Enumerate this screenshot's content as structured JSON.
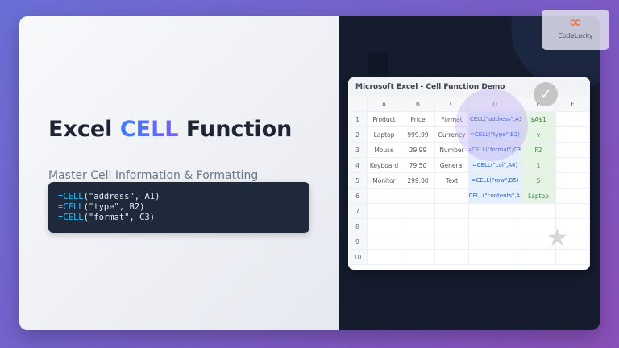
{
  "hero": {
    "title_pre": "Excel ",
    "title_hl": "CELL",
    "title_post": " Function",
    "subtitle": "Master Cell Information & Formatting"
  },
  "code": [
    {
      "fn": "=CELL",
      "args": "(\"address\", A1)"
    },
    {
      "fn": "=CELL",
      "args": "(\"type\", B2)"
    },
    {
      "fn": "=CELL",
      "args": "(\"format\", C3)"
    }
  ],
  "sheet": {
    "title": "Microsoft Excel - Cell Function Demo",
    "columns": [
      "",
      "A",
      "B",
      "C",
      "D",
      "E",
      "F"
    ],
    "rows": [
      [
        "1",
        "Product",
        "Price",
        "Format",
        "=CELL(\"address\",A1)",
        "$A$1",
        ""
      ],
      [
        "2",
        "Laptop",
        "999.99",
        "Currency",
        "=CELL(\"type\",B2)",
        "v",
        ""
      ],
      [
        "3",
        "Mouse",
        "29.99",
        "Number",
        "=CELL(\"format\",C3)",
        "F2",
        ""
      ],
      [
        "4",
        "Keyboard",
        "79.50",
        "General",
        "=CELL(\"col\",A4)",
        "1",
        ""
      ],
      [
        "5",
        "Monitor",
        "299.00",
        "Text",
        "=CELL(\"row\",B5)",
        "5",
        ""
      ],
      [
        "6",
        "",
        "",
        "",
        "=CELL(\"contents\",A2)",
        "Laptop",
        ""
      ],
      [
        "7",
        "",
        "",
        "",
        "",
        "",
        ""
      ],
      [
        "8",
        "",
        "",
        "",
        "",
        "",
        ""
      ],
      [
        "9",
        "",
        "",
        "",
        "",
        "",
        ""
      ],
      [
        "10",
        "",
        "",
        "",
        "",
        "",
        ""
      ]
    ]
  },
  "logo": {
    "text": "CodeLucky"
  },
  "colors": {
    "accent": "#5b6cf5",
    "code_bg": "#1e293b",
    "formula": "#2f5fd0",
    "result": "#3a8a3a"
  }
}
